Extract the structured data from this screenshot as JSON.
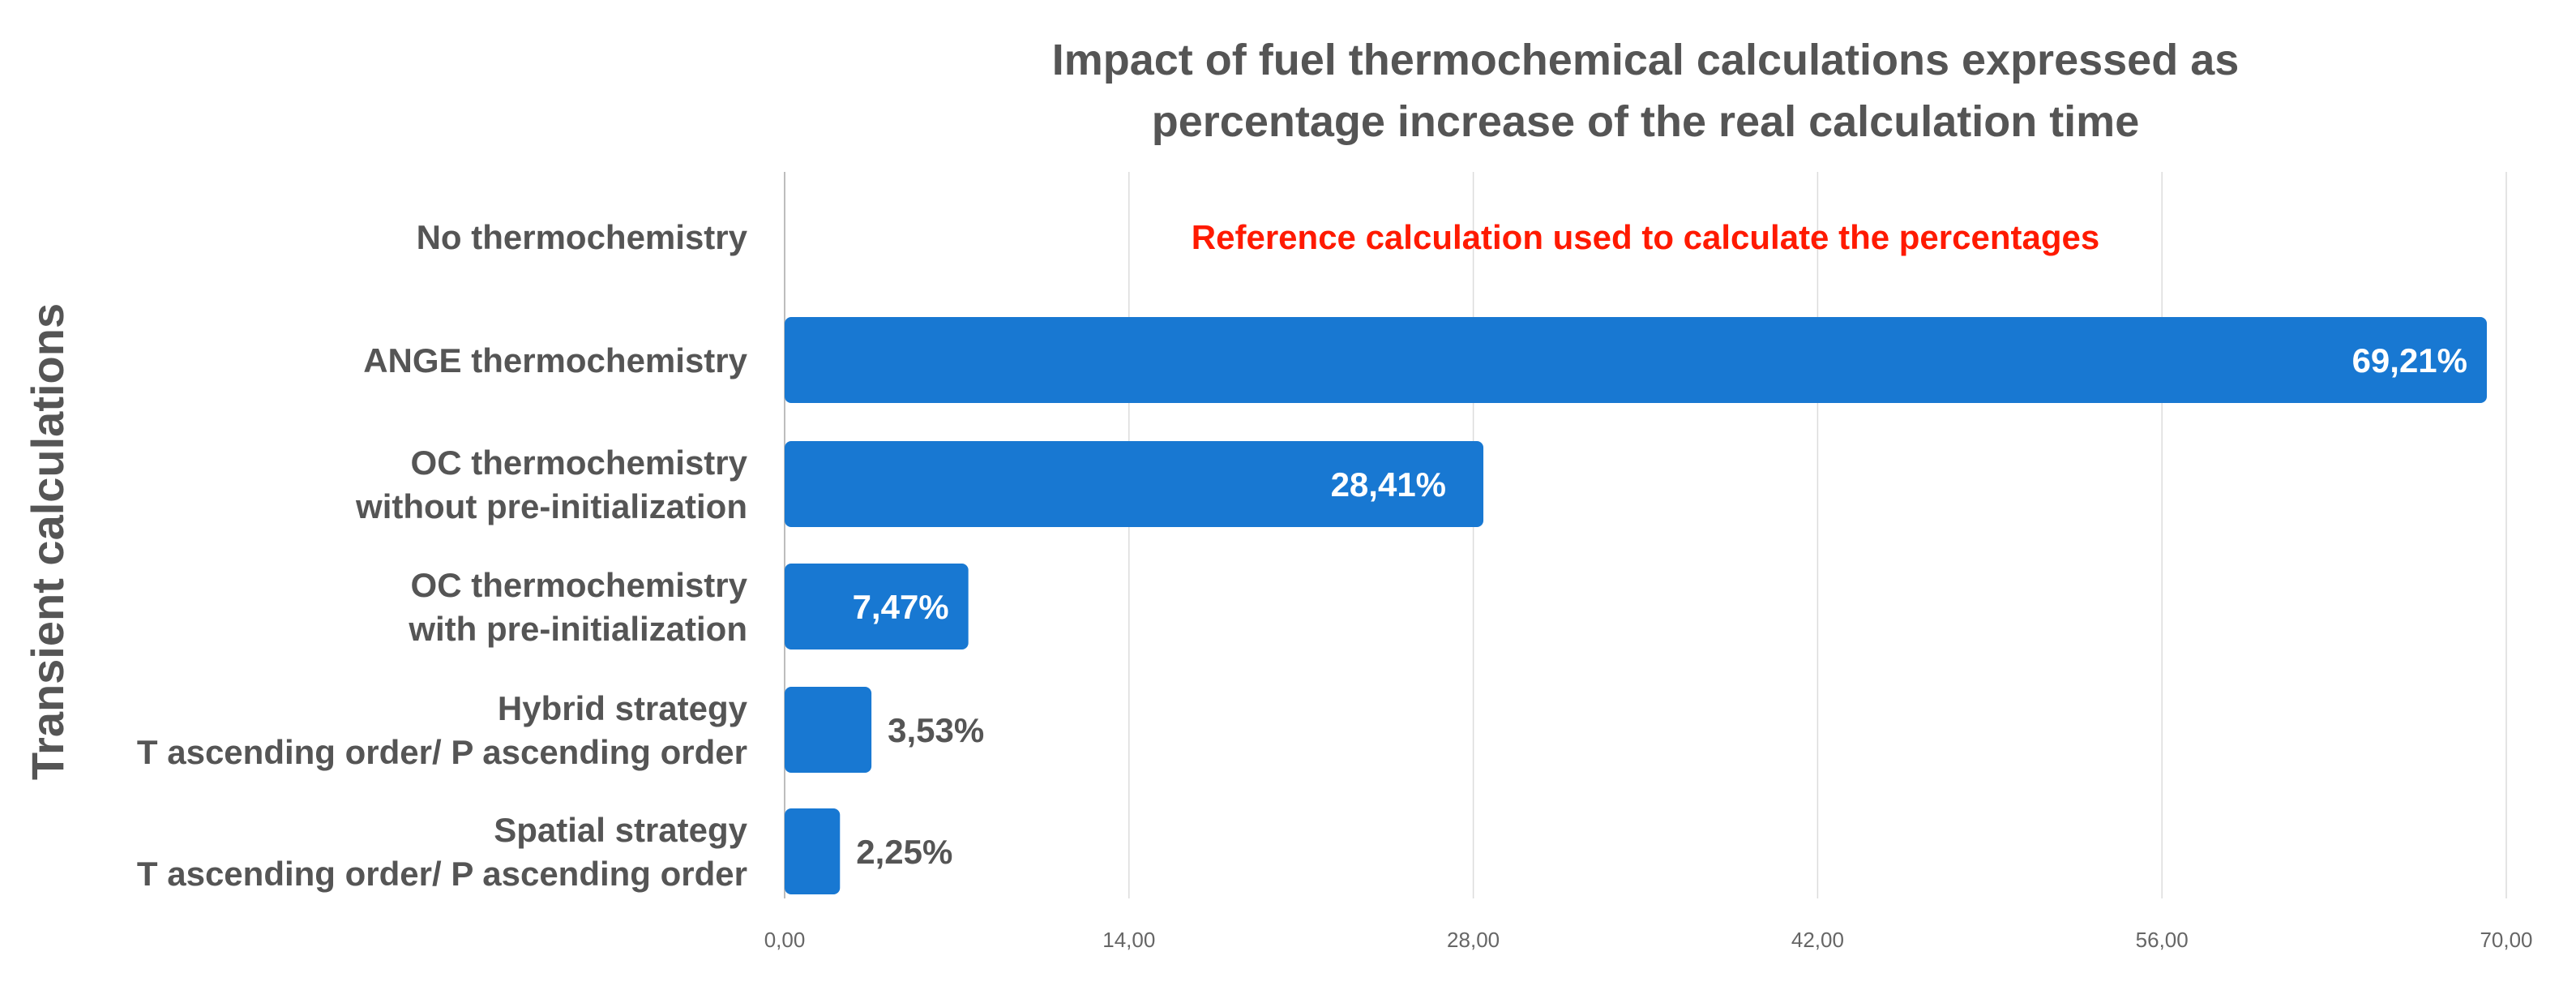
{
  "chart_data": {
    "type": "bar",
    "orientation": "horizontal",
    "title_lines": [
      "Impact of fuel thermochemical calculations expressed as",
      "percentage increase of the real calculation time"
    ],
    "ylabel": "Transient calculations",
    "xlim": [
      0,
      70
    ],
    "x_ticks": [
      "0,00",
      "14,00",
      "28,00",
      "42,00",
      "56,00",
      "70,00"
    ],
    "x_tick_values": [
      0,
      14,
      28,
      42,
      56,
      70
    ],
    "grid": "vertical",
    "bar_color": "#1878D2",
    "categories": [
      {
        "lines": [
          "No thermochemistry"
        ],
        "value": null,
        "label": ""
      },
      {
        "lines": [
          "ANGE thermochemistry"
        ],
        "value": 69.21,
        "label": "69,21%",
        "label_position": "inside-end"
      },
      {
        "lines": [
          "OC thermochemistry",
          "without pre-initialization"
        ],
        "value": 28.41,
        "label": "28,41%",
        "label_position": "inside-end"
      },
      {
        "lines": [
          "OC thermochemistry",
          "with pre-initialization"
        ],
        "value": 7.47,
        "label": "7,47%",
        "label_position": "inside-end"
      },
      {
        "lines": [
          "Hybrid strategy",
          "T ascending order/ P ascending order"
        ],
        "value": 3.53,
        "label": "3,53%",
        "label_position": "outside"
      },
      {
        "lines": [
          "Spatial strategy",
          "T ascending order/ P ascending order"
        ],
        "value": 2.25,
        "label": "2,25%",
        "label_position": "outside"
      }
    ],
    "annotation": {
      "text": "Reference calculation used to calculate the percentages",
      "row": 0,
      "color": "#FF1A00"
    }
  }
}
